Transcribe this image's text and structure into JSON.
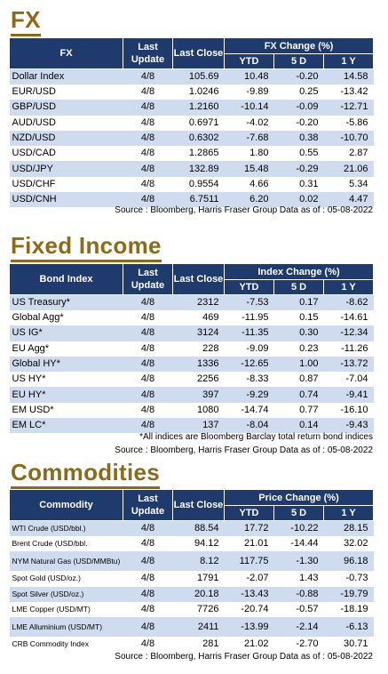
{
  "fx": {
    "title": "FX",
    "headers": {
      "name": "FX",
      "last_update": "Last Update",
      "last_close": "Last Close",
      "change": "FX Change (%)",
      "ytd": "YTD",
      "d5": "5 D",
      "y1": "1 Y"
    },
    "rows": [
      {
        "name": "Dollar Index",
        "update": "4/8",
        "close": "105.69",
        "ytd": "10.48",
        "d5": "-0.20",
        "y1": "14.58"
      },
      {
        "name": "EUR/USD",
        "update": "4/8",
        "close": "1.0246",
        "ytd": "-9.89",
        "d5": "0.25",
        "y1": "-13.42"
      },
      {
        "name": "GBP/USD",
        "update": "4/8",
        "close": "1.2160",
        "ytd": "-10.14",
        "d5": "-0.09",
        "y1": "-12.71"
      },
      {
        "name": "AUD/USD",
        "update": "4/8",
        "close": "0.6971",
        "ytd": "-4.02",
        "d5": "-0.20",
        "y1": "-5.86"
      },
      {
        "name": "NZD/USD",
        "update": "4/8",
        "close": "0.6302",
        "ytd": "-7.68",
        "d5": "0.38",
        "y1": "-10.70"
      },
      {
        "name": "USD/CAD",
        "update": "4/8",
        "close": "1.2865",
        "ytd": "1.80",
        "d5": "0.55",
        "y1": "2.87"
      },
      {
        "name": "USD/JPY",
        "update": "4/8",
        "close": "132.89",
        "ytd": "15.48",
        "d5": "-0.29",
        "y1": "21.06"
      },
      {
        "name": "USD/CHF",
        "update": "4/8",
        "close": "0.9554",
        "ytd": "4.66",
        "d5": "0.31",
        "y1": "5.34"
      },
      {
        "name": "USD/CNH",
        "update": "4/8",
        "close": "6.7511",
        "ytd": "6.20",
        "d5": "0.02",
        "y1": "4.47"
      }
    ],
    "source": "Source : Bloomberg, Harris Fraser Group Data as of : 05-08-2022"
  },
  "fixed_income": {
    "title": "Fixed Income",
    "headers": {
      "name": "Bond Index",
      "last_update": "Last Update",
      "last_close": "Last Close",
      "change": "Index Change (%)",
      "ytd": "YTD",
      "d5": "5 D",
      "y1": "1 Y"
    },
    "rows": [
      {
        "name": "US Treasury*",
        "update": "4/8",
        "close": "2312",
        "ytd": "-7.53",
        "d5": "0.17",
        "y1": "-8.62"
      },
      {
        "name": "Global Agg*",
        "update": "4/8",
        "close": "469",
        "ytd": "-11.95",
        "d5": "0.15",
        "y1": "-14.61"
      },
      {
        "name": "US IG*",
        "update": "4/8",
        "close": "3124",
        "ytd": "-11.35",
        "d5": "0.30",
        "y1": "-12.34"
      },
      {
        "name": "EU Agg*",
        "update": "4/8",
        "close": "228",
        "ytd": "-9.09",
        "d5": "0.23",
        "y1": "-11.26"
      },
      {
        "name": "Global HY*",
        "update": "4/8",
        "close": "1336",
        "ytd": "-12.65",
        "d5": "1.00",
        "y1": "-13.72"
      },
      {
        "name": "US HY*",
        "update": "4/8",
        "close": "2256",
        "ytd": "-8.33",
        "d5": "0.87",
        "y1": "-7.04"
      },
      {
        "name": "EU HY*",
        "update": "4/8",
        "close": "397",
        "ytd": "-9.29",
        "d5": "0.74",
        "y1": "-9.41"
      },
      {
        "name": "EM USD*",
        "update": "4/8",
        "close": "1080",
        "ytd": "-14.74",
        "d5": "0.77",
        "y1": "-16.10"
      },
      {
        "name": "EM LC*",
        "update": "4/8",
        "close": "137",
        "ytd": "-8.04",
        "d5": "0.14",
        "y1": "-9.43"
      }
    ],
    "footnote": "*All indices are Bloomberg Barclay total return bond indices",
    "source": "Source : Bloomberg, Harris Fraser Group Data as of : 05-08-2022"
  },
  "commodities": {
    "title": "Commodities",
    "headers": {
      "name": "Commodity",
      "last_update": "Last Update",
      "last_close": "Last Close",
      "change": "Price Change (%)",
      "ytd": "YTD",
      "d5": "5 D",
      "y1": "1 Y"
    },
    "rows": [
      {
        "name": "WTI Crude (USD/bbl.)",
        "update": "4/8",
        "close": "88.54",
        "ytd": "17.72",
        "d5": "-10.22",
        "y1": "28.15"
      },
      {
        "name": "Brent Crude (USD/bbl.",
        "update": "4/8",
        "close": "94.12",
        "ytd": "21.01",
        "d5": "-14.44",
        "y1": "32.02"
      },
      {
        "name": "NYM Natural Gas (USD/MMBtu)",
        "update": "4/8",
        "close": "8.12",
        "ytd": "117.75",
        "d5": "-1.30",
        "y1": "96.18"
      },
      {
        "name": "Spot Gold (USD/oz.)",
        "update": "4/8",
        "close": "1791",
        "ytd": "-2.07",
        "d5": "1.43",
        "y1": "-0.73"
      },
      {
        "name": "Spot Silver (USD/oz.)",
        "update": "4/8",
        "close": "20.18",
        "ytd": "-13.43",
        "d5": "-0.88",
        "y1": "-19.79"
      },
      {
        "name": "LME Copper (USD/MT)",
        "update": "4/8",
        "close": "7726",
        "ytd": "-20.74",
        "d5": "-0.57",
        "y1": "-18.19"
      },
      {
        "name": "LME Alluminium (USD/MT)",
        "update": "4/8",
        "close": "2411",
        "ytd": "-13.99",
        "d5": "-2.14",
        "y1": "-6.13"
      },
      {
        "name": "CRB Commodity Index",
        "update": "4/8",
        "close": "281",
        "ytd": "21.02",
        "d5": "-2.70",
        "y1": "30.71"
      }
    ],
    "source": "Source : Bloomberg, Harris Fraser Group Data as of : 05-08-2022"
  },
  "colors": {
    "title": "#8b6a1a",
    "header_bg": "#1f3b6e",
    "stripe": "#cfdcf0"
  }
}
